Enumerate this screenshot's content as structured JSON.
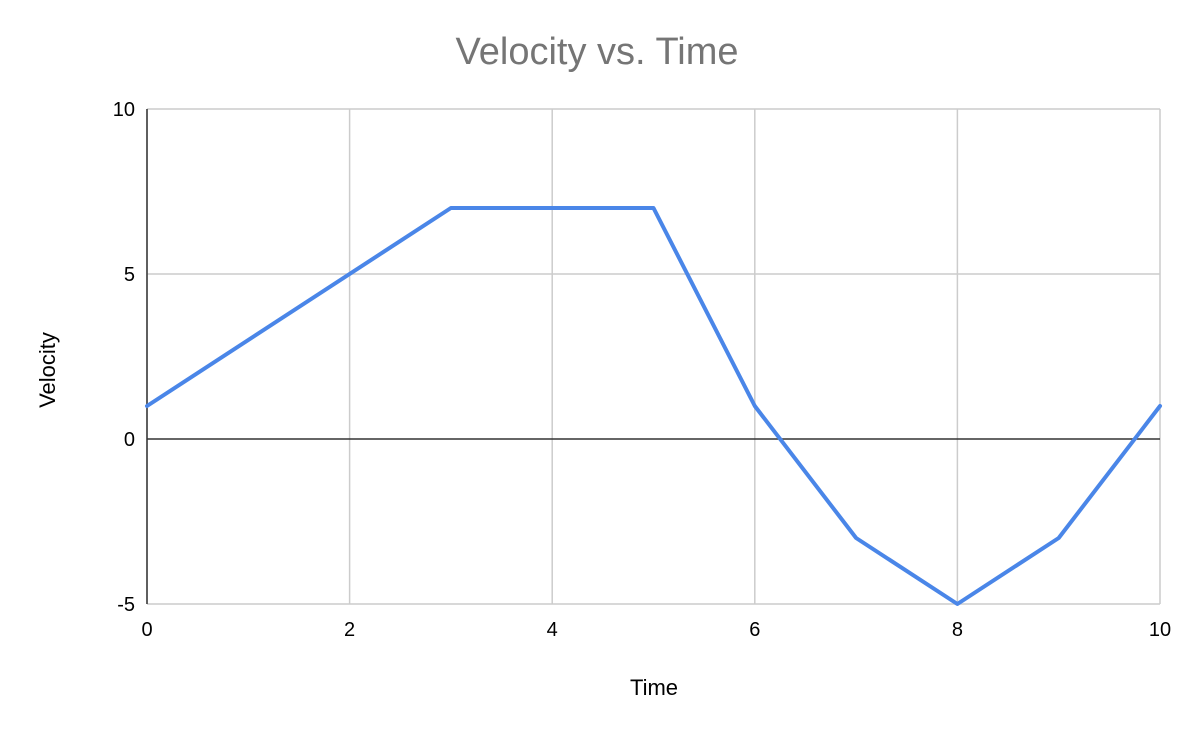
{
  "chart_data": {
    "type": "line",
    "title": "Velocity vs. Time",
    "xlabel": "Time",
    "ylabel": "Velocity",
    "x": [
      0,
      3,
      5,
      6,
      7,
      8,
      9,
      10
    ],
    "series": [
      {
        "values": [
          1,
          7,
          7,
          1,
          -3,
          -5,
          -3,
          1
        ],
        "color": "#4a86e8"
      }
    ],
    "xlim": [
      0,
      10
    ],
    "ylim": [
      -5,
      10
    ],
    "x_ticks": [
      0,
      2,
      4,
      6,
      8,
      10
    ],
    "y_ticks": [
      -5,
      0,
      5,
      10
    ],
    "grid": true,
    "zero_line": true,
    "legend": "none"
  }
}
